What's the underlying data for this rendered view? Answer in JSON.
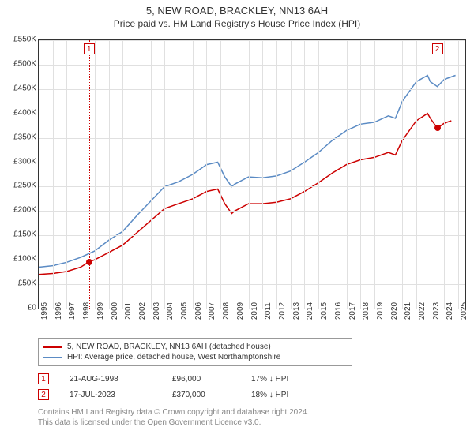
{
  "title": "5, NEW ROAD, BRACKLEY, NN13 6AH",
  "subtitle": "Price paid vs. HM Land Registry's House Price Index (HPI)",
  "chart": {
    "type": "line",
    "xlim": [
      1995,
      2025.5
    ],
    "ylim": [
      0,
      550000
    ],
    "ytick_step": 50000,
    "yticks": [
      "£0",
      "£50K",
      "£100K",
      "£150K",
      "£200K",
      "£250K",
      "£300K",
      "£350K",
      "£400K",
      "£450K",
      "£500K",
      "£550K"
    ],
    "xticks": [
      1995,
      1996,
      1997,
      1998,
      1999,
      2000,
      2001,
      2002,
      2003,
      2004,
      2005,
      2006,
      2007,
      2008,
      2009,
      2010,
      2011,
      2012,
      2013,
      2014,
      2015,
      2016,
      2017,
      2018,
      2019,
      2020,
      2021,
      2022,
      2023,
      2024,
      2025
    ],
    "background_color": "#ffffff",
    "grid_color": "#e0e0e0",
    "series": [
      {
        "name": "price_paid",
        "color": "#cc0000",
        "width": 1.5,
        "points": [
          [
            1995,
            70000
          ],
          [
            1996,
            72000
          ],
          [
            1997,
            76000
          ],
          [
            1998,
            85000
          ],
          [
            1998.6,
            96000
          ],
          [
            1999,
            100000
          ],
          [
            2000,
            115000
          ],
          [
            2001,
            130000
          ],
          [
            2002,
            155000
          ],
          [
            2003,
            180000
          ],
          [
            2004,
            205000
          ],
          [
            2005,
            215000
          ],
          [
            2006,
            225000
          ],
          [
            2007,
            240000
          ],
          [
            2007.8,
            245000
          ],
          [
            2008.3,
            215000
          ],
          [
            2008.8,
            195000
          ],
          [
            2009,
            200000
          ],
          [
            2010,
            215000
          ],
          [
            2011,
            215000
          ],
          [
            2012,
            218000
          ],
          [
            2013,
            225000
          ],
          [
            2014,
            240000
          ],
          [
            2015,
            258000
          ],
          [
            2016,
            278000
          ],
          [
            2017,
            295000
          ],
          [
            2018,
            305000
          ],
          [
            2019,
            310000
          ],
          [
            2020,
            320000
          ],
          [
            2020.5,
            315000
          ],
          [
            2021,
            345000
          ],
          [
            2022,
            385000
          ],
          [
            2022.8,
            400000
          ],
          [
            2023,
            390000
          ],
          [
            2023.5,
            370000
          ],
          [
            2024,
            380000
          ],
          [
            2024.5,
            385000
          ]
        ]
      },
      {
        "name": "hpi",
        "color": "#5b8bc4",
        "width": 1.5,
        "points": [
          [
            1995,
            85000
          ],
          [
            1996,
            88000
          ],
          [
            1997,
            95000
          ],
          [
            1998,
            105000
          ],
          [
            1999,
            118000
          ],
          [
            2000,
            140000
          ],
          [
            2001,
            158000
          ],
          [
            2002,
            190000
          ],
          [
            2003,
            220000
          ],
          [
            2004,
            250000
          ],
          [
            2005,
            260000
          ],
          [
            2006,
            275000
          ],
          [
            2007,
            295000
          ],
          [
            2007.8,
            300000
          ],
          [
            2008.3,
            270000
          ],
          [
            2008.8,
            250000
          ],
          [
            2009,
            255000
          ],
          [
            2010,
            270000
          ],
          [
            2011,
            268000
          ],
          [
            2012,
            272000
          ],
          [
            2013,
            282000
          ],
          [
            2014,
            300000
          ],
          [
            2015,
            320000
          ],
          [
            2016,
            345000
          ],
          [
            2017,
            365000
          ],
          [
            2018,
            378000
          ],
          [
            2019,
            382000
          ],
          [
            2020,
            395000
          ],
          [
            2020.5,
            390000
          ],
          [
            2021,
            425000
          ],
          [
            2022,
            465000
          ],
          [
            2022.8,
            478000
          ],
          [
            2023,
            465000
          ],
          [
            2023.5,
            455000
          ],
          [
            2024,
            470000
          ],
          [
            2024.8,
            478000
          ]
        ]
      }
    ],
    "markers": [
      {
        "id": "1",
        "x": 1998.6,
        "y": 96000
      },
      {
        "id": "2",
        "x": 2023.5,
        "y": 370000
      }
    ]
  },
  "legend": {
    "items": [
      {
        "color": "#cc0000",
        "label": "5, NEW ROAD, BRACKLEY, NN13 6AH (detached house)"
      },
      {
        "color": "#5b8bc4",
        "label": "HPI: Average price, detached house, West Northamptonshire"
      }
    ]
  },
  "data_rows": [
    {
      "id": "1",
      "date": "21-AUG-1998",
      "price": "£96,000",
      "diff": "17% ↓ HPI"
    },
    {
      "id": "2",
      "date": "17-JUL-2023",
      "price": "£370,000",
      "diff": "18% ↓ HPI"
    }
  ],
  "footer": {
    "line1": "Contains HM Land Registry data © Crown copyright and database right 2024.",
    "line2": "This data is licensed under the Open Government Licence v3.0."
  }
}
